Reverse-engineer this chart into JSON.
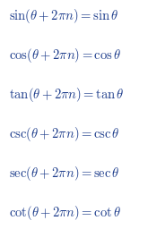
{
  "formulas": [
    "\\sin(\\theta + 2\\pi n) = \\sin\\theta",
    "\\cos(\\theta + 2\\pi n) = \\cos\\theta",
    "\\tan(\\theta + 2\\pi n) = \\tan\\theta",
    "\\csc(\\theta + 2\\pi n) = \\csc\\theta",
    "\\sec(\\theta + 2\\pi n) = \\sec\\theta",
    "\\cot(\\theta + 2\\pi n) = \\cot\\theta"
  ],
  "text_color": "#1a3a8a",
  "background_color": "#ffffff",
  "fontsize": 10.5,
  "fig_width": 1.65,
  "fig_height": 2.56,
  "dpi": 100
}
